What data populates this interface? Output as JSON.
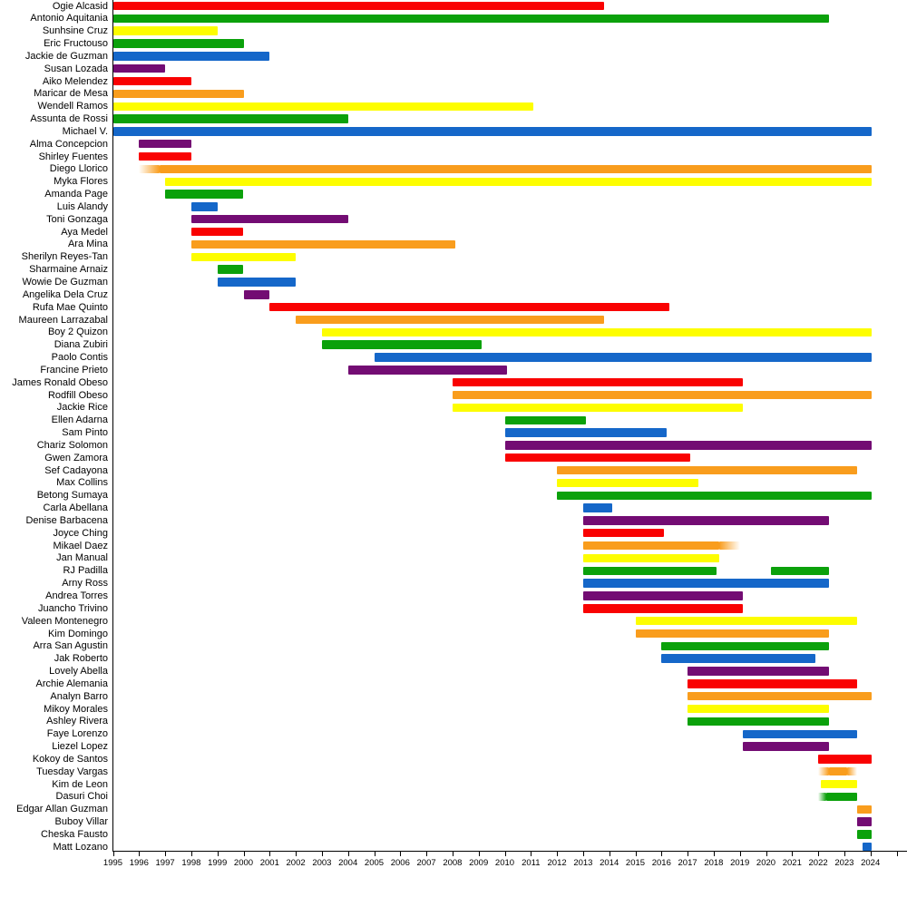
{
  "chart_data": {
    "type": "timeline",
    "title": "",
    "xlabel": "",
    "ylabel": "",
    "x_axis": {
      "start_year": 1995,
      "end_year": 2024,
      "tick_interval": 1,
      "tick_labels": [
        "1995",
        "1996",
        "1997",
        "1998",
        "1999",
        "2000",
        "2001",
        "2002",
        "2003",
        "2004",
        "2005",
        "2006",
        "2007",
        "2008",
        "2009",
        "2010",
        "2011",
        "2012",
        "2013",
        "2014",
        "2015",
        "2016",
        "2017",
        "2018",
        "2019",
        "2020",
        "2021",
        "2022",
        "2023",
        "2024"
      ],
      "extra_unlabeled_tick": 2025
    },
    "present_value": 2024.05,
    "legend": "none",
    "grid": "off",
    "palette": {
      "red": "#f90202",
      "orange": "#f99d1d",
      "yellow": "#fdfd00",
      "green": "#0ba10b",
      "blue": "#1567c9",
      "purple": "#730c73"
    },
    "members": [
      {
        "name": "Ogie Alcasid",
        "color": "red",
        "segments": [
          {
            "from": 1995,
            "till": 2013.8
          }
        ]
      },
      {
        "name": "Antonio Aquitania",
        "color": "green",
        "segments": [
          {
            "from": 1995,
            "till": 2022.4
          }
        ]
      },
      {
        "name": "Sunhsine Cruz",
        "color": "yellow",
        "segments": [
          {
            "from": 1995,
            "till": 1999
          }
        ]
      },
      {
        "name": "Eric Fructouso",
        "color": "green",
        "segments": [
          {
            "from": 1995,
            "till": 2000
          }
        ]
      },
      {
        "name": "Jackie de Guzman",
        "color": "blue",
        "segments": [
          {
            "from": 1995,
            "till": 2001
          }
        ]
      },
      {
        "name": "Susan Lozada",
        "color": "purple",
        "segments": [
          {
            "from": 1995,
            "till": 1997
          }
        ]
      },
      {
        "name": "Aiko Melendez",
        "color": "red",
        "segments": [
          {
            "from": 1995,
            "till": 1998
          }
        ]
      },
      {
        "name": "Maricar de Mesa",
        "color": "orange",
        "segments": [
          {
            "from": 1995,
            "till": 2000
          }
        ]
      },
      {
        "name": "Wendell Ramos",
        "color": "yellow",
        "segments": [
          {
            "from": 1995,
            "till": 2011.1
          }
        ]
      },
      {
        "name": "Assunta de Rossi",
        "color": "green",
        "segments": [
          {
            "from": 1995,
            "till": 2004
          }
        ]
      },
      {
        "name": "Michael V.",
        "color": "blue",
        "segments": [
          {
            "from": 1995,
            "till": "present"
          }
        ]
      },
      {
        "name": "Alma Concepcion",
        "color": "purple",
        "segments": [
          {
            "from": 1996,
            "till": 1998
          }
        ]
      },
      {
        "name": "Shirley Fuentes",
        "color": "red",
        "segments": [
          {
            "from": 1996,
            "till": 1998
          }
        ]
      },
      {
        "name": "Diego Llorico",
        "color": "orange",
        "segments": [
          {
            "from": 1996,
            "till": "present",
            "fade_in_until": 1996.8
          }
        ]
      },
      {
        "name": "Myka Flores",
        "color": "yellow",
        "segments": [
          {
            "from": 1997,
            "till": "present"
          }
        ]
      },
      {
        "name": "Amanda Page",
        "color": "green",
        "segments": [
          {
            "from": 1997,
            "till": 2000
          }
        ]
      },
      {
        "name": "Luis Alandy",
        "color": "blue",
        "segments": [
          {
            "from": 1998,
            "till": 1999
          }
        ]
      },
      {
        "name": "Toni Gonzaga",
        "color": "purple",
        "segments": [
          {
            "from": 1998,
            "till": 2004
          }
        ]
      },
      {
        "name": "Aya Medel",
        "color": "red",
        "segments": [
          {
            "from": 1998,
            "till": 2000
          }
        ]
      },
      {
        "name": "Ara Mina",
        "color": "orange",
        "segments": [
          {
            "from": 1998,
            "till": 2008.1
          }
        ]
      },
      {
        "name": "Sherilyn Reyes-Tan",
        "color": "yellow",
        "segments": [
          {
            "from": 1998,
            "till": 2002
          }
        ]
      },
      {
        "name": "Sharmaine Arnaiz",
        "color": "green",
        "segments": [
          {
            "from": 1999,
            "till": 2000
          }
        ]
      },
      {
        "name": "Wowie De Guzman",
        "color": "blue",
        "segments": [
          {
            "from": 1999,
            "till": 2002
          }
        ]
      },
      {
        "name": "Angelika Dela Cruz",
        "color": "purple",
        "segments": [
          {
            "from": 2000,
            "till": 2001
          }
        ]
      },
      {
        "name": "Rufa Mae Quinto",
        "color": "red",
        "segments": [
          {
            "from": 2001,
            "till": 2016.3
          }
        ]
      },
      {
        "name": "Maureen Larrazabal",
        "color": "orange",
        "segments": [
          {
            "from": 2002,
            "till": 2013.8
          }
        ]
      },
      {
        "name": "Boy 2 Quizon",
        "color": "yellow",
        "segments": [
          {
            "from": 2003,
            "till": "present"
          }
        ]
      },
      {
        "name": "Diana Zubiri",
        "color": "green",
        "segments": [
          {
            "from": 2003,
            "till": 2009.1
          }
        ]
      },
      {
        "name": "Paolo Contis",
        "color": "blue",
        "segments": [
          {
            "from": 2005,
            "till": "present"
          }
        ]
      },
      {
        "name": "Francine Prieto",
        "color": "purple",
        "segments": [
          {
            "from": 2004,
            "till": 2010.1
          }
        ]
      },
      {
        "name": "James Ronald Obeso",
        "color": "red",
        "segments": [
          {
            "from": 2008,
            "till": 2019.1
          }
        ]
      },
      {
        "name": "Rodfill Obeso",
        "color": "orange",
        "segments": [
          {
            "from": 2008,
            "till": "present"
          }
        ]
      },
      {
        "name": "Jackie Rice",
        "color": "yellow",
        "segments": [
          {
            "from": 2008,
            "till": 2019.1
          }
        ]
      },
      {
        "name": "Ellen Adarna",
        "color": "green",
        "segments": [
          {
            "from": 2010,
            "till": 2013.1
          }
        ]
      },
      {
        "name": "Sam Pinto",
        "color": "blue",
        "segments": [
          {
            "from": 2010,
            "till": 2016.2
          }
        ]
      },
      {
        "name": "Chariz Solomon",
        "color": "purple",
        "segments": [
          {
            "from": 2010,
            "till": "present"
          }
        ]
      },
      {
        "name": "Gwen Zamora",
        "color": "red",
        "segments": [
          {
            "from": 2010,
            "till": 2017.1
          }
        ]
      },
      {
        "name": "Sef Cadayona",
        "color": "orange",
        "segments": [
          {
            "from": 2012,
            "till": 2023.5
          }
        ]
      },
      {
        "name": "Max Collins",
        "color": "yellow",
        "segments": [
          {
            "from": 2012,
            "till": 2017.4
          }
        ]
      },
      {
        "name": "Betong Sumaya",
        "color": "green",
        "segments": [
          {
            "from": 2012,
            "till": "present"
          }
        ]
      },
      {
        "name": "Carla Abellana",
        "color": "blue",
        "segments": [
          {
            "from": 2013,
            "till": 2014.1
          }
        ]
      },
      {
        "name": "Denise Barbacena",
        "color": "purple",
        "segments": [
          {
            "from": 2013,
            "till": 2022.4
          }
        ]
      },
      {
        "name": "Joyce Ching",
        "color": "red",
        "segments": [
          {
            "from": 2013,
            "till": 2016.1
          }
        ]
      },
      {
        "name": "Mikael Daez",
        "color": "orange",
        "segments": [
          {
            "from": 2013,
            "till": 2019,
            "fade_out_from": 2018.2
          }
        ]
      },
      {
        "name": "Jan Manual",
        "color": "yellow",
        "segments": [
          {
            "from": 2013,
            "till": 2018.2
          }
        ]
      },
      {
        "name": "RJ Padilla",
        "color": "green",
        "segments": [
          {
            "from": 2013,
            "till": 2018.1
          },
          {
            "from": 2020.2,
            "till": 2022.4
          }
        ]
      },
      {
        "name": "Arny Ross",
        "color": "blue",
        "segments": [
          {
            "from": 2013,
            "till": 2022.4
          }
        ]
      },
      {
        "name": "Andrea Torres",
        "color": "purple",
        "segments": [
          {
            "from": 2013,
            "till": 2019.1
          }
        ]
      },
      {
        "name": "Juancho Trivino",
        "color": "red",
        "segments": [
          {
            "from": 2013,
            "till": 2019.1
          }
        ]
      },
      {
        "name": "Valeen Montenegro",
        "color": "yellow",
        "segments": [
          {
            "from": 2015,
            "till": 2023.5
          }
        ]
      },
      {
        "name": "Kim Domingo",
        "color": "orange",
        "segments": [
          {
            "from": 2015,
            "till": 2022.4
          }
        ]
      },
      {
        "name": "Arra San Agustin",
        "color": "green",
        "segments": [
          {
            "from": 2016,
            "till": 2022.4
          }
        ]
      },
      {
        "name": "Jak Roberto",
        "color": "blue",
        "segments": [
          {
            "from": 2016,
            "till": 2021.9
          }
        ]
      },
      {
        "name": "Lovely Abella",
        "color": "purple",
        "segments": [
          {
            "from": 2017,
            "till": 2022.4
          }
        ]
      },
      {
        "name": "Archie Alemania",
        "color": "red",
        "segments": [
          {
            "from": 2017,
            "till": 2023.5
          }
        ]
      },
      {
        "name": "Analyn Barro",
        "color": "orange",
        "segments": [
          {
            "from": 2017,
            "till": "present"
          }
        ]
      },
      {
        "name": "Mikoy Morales",
        "color": "yellow",
        "segments": [
          {
            "from": 2017,
            "till": 2022.4
          }
        ]
      },
      {
        "name": "Ashley Rivera",
        "color": "green",
        "segments": [
          {
            "from": 2017,
            "till": 2022.4
          }
        ]
      },
      {
        "name": "Faye Lorenzo",
        "color": "blue",
        "segments": [
          {
            "from": 2019.1,
            "till": 2023.5
          }
        ]
      },
      {
        "name": "Liezel Lopez",
        "color": "purple",
        "segments": [
          {
            "from": 2019.1,
            "till": 2022.4
          }
        ]
      },
      {
        "name": "Kokoy de Santos",
        "color": "red",
        "segments": [
          {
            "from": 2022,
            "till": "present"
          }
        ]
      },
      {
        "name": "Tuesday Vargas",
        "color": "orange",
        "segments": [
          {
            "from": 2022,
            "till": 2023.5,
            "fade_in_until": 2022.4,
            "fade_out_from": 2023.1
          }
        ]
      },
      {
        "name": "Kim de Leon",
        "color": "yellow",
        "segments": [
          {
            "from": 2022.1,
            "till": 2023.5
          }
        ]
      },
      {
        "name": "Dasuri Choi",
        "color": "green",
        "segments": [
          {
            "from": 2022,
            "till": 2023.5,
            "fade_in_until": 2022.3
          }
        ]
      },
      {
        "name": "Edgar Allan Guzman",
        "color": "orange",
        "segments": [
          {
            "from": 2023.5,
            "till": "present"
          }
        ]
      },
      {
        "name": "Buboy Villar",
        "color": "purple",
        "segments": [
          {
            "from": 2023.5,
            "till": "present"
          }
        ]
      },
      {
        "name": "Cheska Fausto",
        "color": "green",
        "segments": [
          {
            "from": 2023.5,
            "till": "present"
          }
        ]
      },
      {
        "name": "Matt Lozano",
        "color": "blue",
        "segments": [
          {
            "from": 2023.7,
            "till": "present"
          }
        ]
      }
    ]
  }
}
